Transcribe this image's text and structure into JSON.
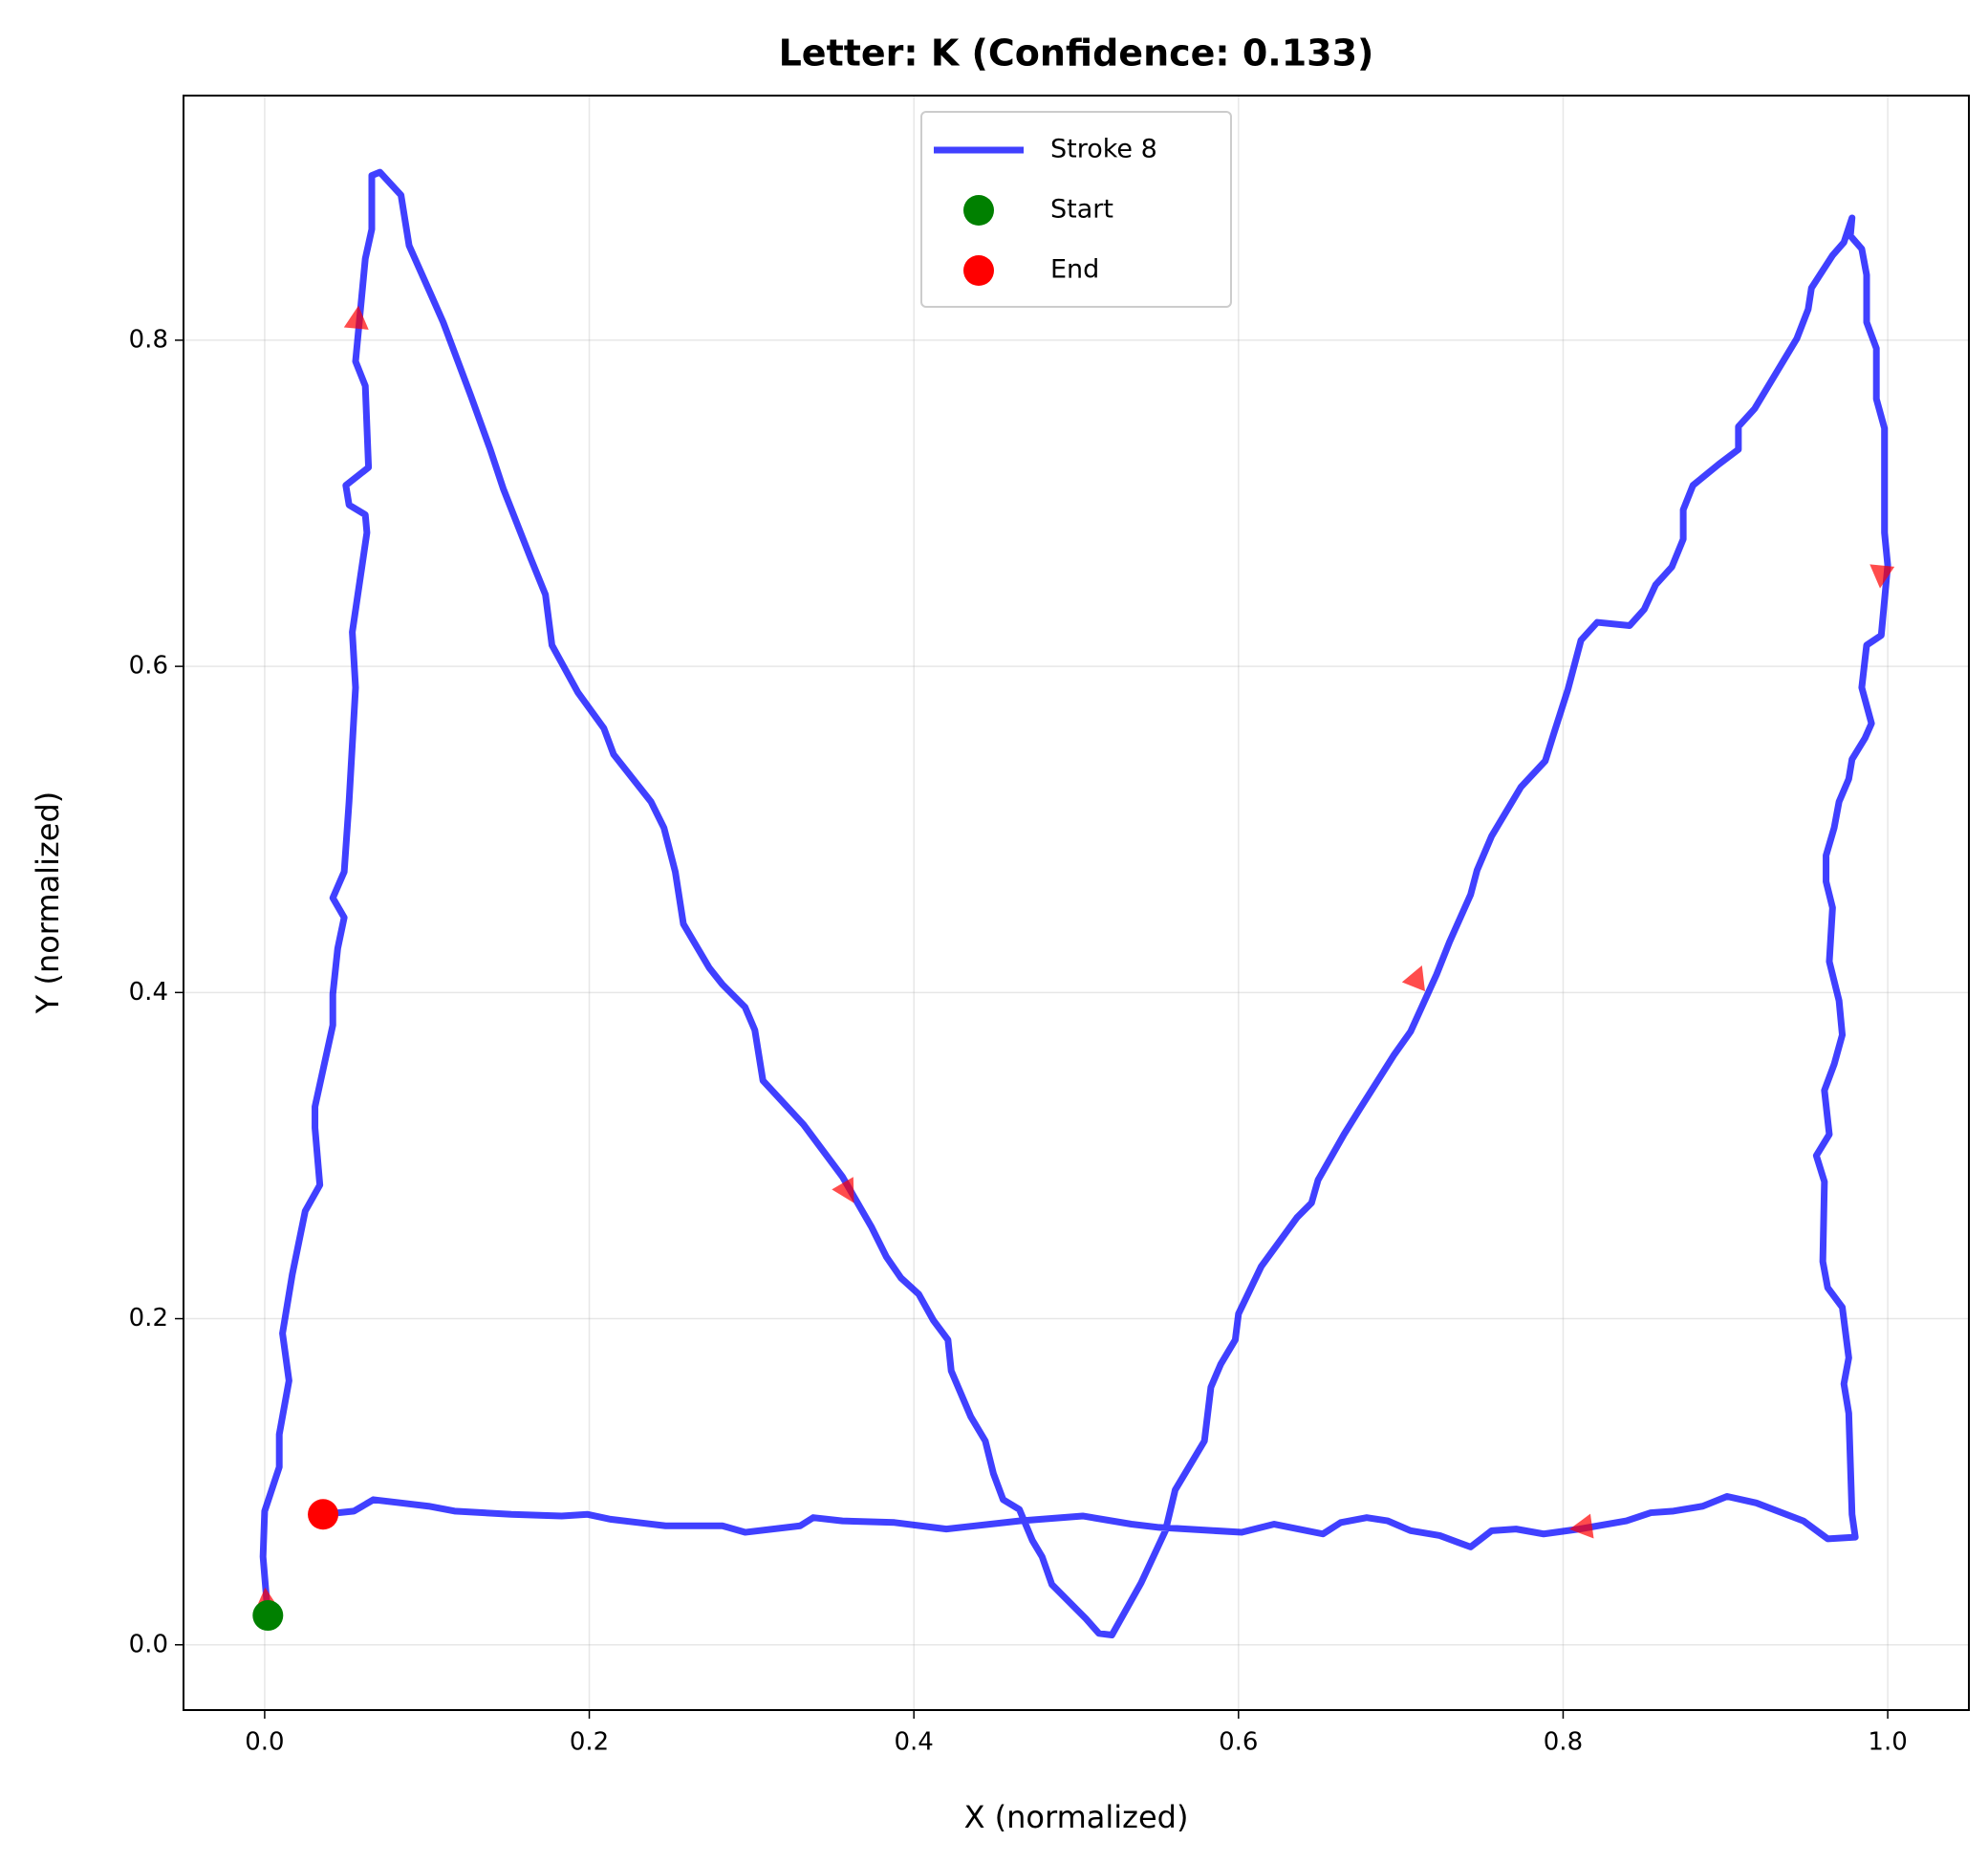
{
  "chart_data": {
    "type": "line",
    "title": "Letter: K (Confidence: 0.133)",
    "x_label": "X (normalized)",
    "y_label": "Y (normalized)",
    "xlim": [
      -0.05,
      1.05
    ],
    "ylim": [
      -0.04,
      0.95
    ],
    "xticks": [
      {
        "value": 0,
        "label": "0.0"
      },
      0.2,
      0.4,
      0.6,
      0.8,
      {
        "value": 1,
        "label": "1.0"
      }
    ],
    "yticks": [
      {
        "value": 0,
        "label": "0.0"
      },
      0.2,
      0.4,
      0.6,
      0.8
    ],
    "grid": true,
    "legend": "upper center",
    "series": [
      {
        "name": "Stroke 8",
        "color": "#0000ff",
        "x": [
          0.002,
          -0.001,
          0.0,
          0.009,
          0.009,
          0.015,
          0.011,
          0.017,
          0.025,
          0.034,
          0.031,
          0.031,
          0.042,
          0.042,
          0.045,
          0.049,
          0.042,
          0.049,
          0.052,
          0.056,
          0.054,
          0.063,
          0.062,
          0.052,
          0.05,
          0.064,
          0.062,
          0.056,
          0.062,
          0.066,
          0.066,
          0.071,
          0.084,
          0.089,
          0.102,
          0.11,
          0.127,
          0.139,
          0.147,
          0.164,
          0.173,
          0.177,
          0.193,
          0.209,
          0.215,
          0.238,
          0.246,
          0.253,
          0.258,
          0.274,
          0.282,
          0.296,
          0.302,
          0.307,
          0.332,
          0.356,
          0.374,
          0.383,
          0.392,
          0.403,
          0.412,
          0.421,
          0.423,
          0.435,
          0.444,
          0.449,
          0.455,
          0.465,
          0.473,
          0.479,
          0.485,
          0.501,
          0.506,
          0.514,
          0.522,
          0.54,
          0.555,
          0.561,
          0.579,
          0.583,
          0.589,
          0.598,
          0.6,
          0.614,
          0.636,
          0.645,
          0.649,
          0.665,
          0.675,
          0.696,
          0.706,
          0.722,
          0.73,
          0.743,
          0.747,
          0.756,
          0.774,
          0.789,
          0.794,
          0.803,
          0.811,
          0.821,
          0.841,
          0.85,
          0.857,
          0.867,
          0.874,
          0.874,
          0.88,
          0.896,
          0.908,
          0.908,
          0.918,
          0.944,
          0.951,
          0.953,
          0.966,
          0.973,
          0.978,
          0.977,
          0.984,
          0.987,
          0.987,
          0.993,
          0.993,
          0.998,
          0.998,
          1.0,
          0.996,
          0.987,
          0.984,
          0.99,
          0.986,
          0.978,
          0.976,
          0.97,
          0.967,
          0.962,
          0.962,
          0.966,
          0.964,
          0.97,
          0.972,
          0.967,
          0.961,
          0.964,
          0.956,
          0.961,
          0.96,
          0.963,
          0.972,
          0.976,
          0.973,
          0.976,
          0.978,
          0.98,
          0.963,
          0.948,
          0.919,
          0.901,
          0.886,
          0.868,
          0.854,
          0.839,
          0.81,
          0.788,
          0.771,
          0.756,
          0.743,
          0.724,
          0.706,
          0.692,
          0.679,
          0.663,
          0.652,
          0.622,
          0.602,
          0.551,
          0.534,
          0.504,
          0.465,
          0.42,
          0.388,
          0.356,
          0.338,
          0.33,
          0.296,
          0.282,
          0.247,
          0.23,
          0.213,
          0.199,
          0.183,
          0.152,
          0.117,
          0.101,
          0.084,
          0.067,
          0.055,
          0.036
        ],
        "values": [
          0.018,
          0.054,
          0.082,
          0.109,
          0.129,
          0.162,
          0.191,
          0.227,
          0.266,
          0.282,
          0.317,
          0.33,
          0.38,
          0.399,
          0.427,
          0.446,
          0.458,
          0.474,
          0.517,
          0.587,
          0.621,
          0.682,
          0.693,
          0.699,
          0.711,
          0.722,
          0.772,
          0.787,
          0.85,
          0.868,
          0.901,
          0.903,
          0.889,
          0.858,
          0.829,
          0.811,
          0.766,
          0.733,
          0.709,
          0.666,
          0.644,
          0.613,
          0.584,
          0.562,
          0.546,
          0.517,
          0.501,
          0.474,
          0.442,
          0.415,
          0.405,
          0.391,
          0.377,
          0.346,
          0.319,
          0.287,
          0.256,
          0.238,
          0.225,
          0.215,
          0.199,
          0.187,
          0.168,
          0.14,
          0.125,
          0.105,
          0.089,
          0.083,
          0.064,
          0.054,
          0.037,
          0.021,
          0.016,
          0.007,
          0.006,
          0.038,
          0.07,
          0.095,
          0.125,
          0.158,
          0.172,
          0.187,
          0.203,
          0.232,
          0.262,
          0.271,
          0.285,
          0.313,
          0.329,
          0.362,
          0.376,
          0.411,
          0.431,
          0.46,
          0.475,
          0.496,
          0.526,
          0.542,
          0.558,
          0.586,
          0.616,
          0.627,
          0.625,
          0.635,
          0.65,
          0.661,
          0.678,
          0.696,
          0.711,
          0.724,
          0.733,
          0.747,
          0.758,
          0.801,
          0.819,
          0.832,
          0.852,
          0.86,
          0.875,
          0.864,
          0.856,
          0.84,
          0.811,
          0.795,
          0.764,
          0.746,
          0.682,
          0.662,
          0.619,
          0.613,
          0.587,
          0.565,
          0.556,
          0.543,
          0.531,
          0.517,
          0.501,
          0.484,
          0.468,
          0.452,
          0.419,
          0.395,
          0.374,
          0.356,
          0.34,
          0.313,
          0.3,
          0.284,
          0.235,
          0.219,
          0.207,
          0.176,
          0.16,
          0.142,
          0.08,
          0.066,
          0.065,
          0.076,
          0.087,
          0.091,
          0.085,
          0.082,
          0.081,
          0.076,
          0.071,
          0.068,
          0.071,
          0.07,
          0.06,
          0.067,
          0.07,
          0.076,
          0.078,
          0.075,
          0.068,
          0.074,
          0.069,
          0.072,
          0.074,
          0.079,
          0.076,
          0.071,
          0.075,
          0.076,
          0.078,
          0.073,
          0.069,
          0.073,
          0.073,
          0.075,
          0.077,
          0.08,
          0.079,
          0.08,
          0.082,
          0.085,
          0.087,
          0.089,
          0.082,
          0.08
        ]
      }
    ],
    "start": {
      "name": "Start",
      "color": "#008000",
      "x": 0.002,
      "y": 0.018
    },
    "end": {
      "name": "End",
      "color": "#ff0000",
      "x": 0.036,
      "y": 0.08
    },
    "arrows": {
      "color": "#ff0000",
      "x": [
        0.001,
        0.057,
        0.359,
        0.71,
        0.996,
        0.812
      ],
      "y": [
        0.027,
        0.813,
        0.278,
        0.409,
        0.656,
        0.072
      ]
    }
  }
}
